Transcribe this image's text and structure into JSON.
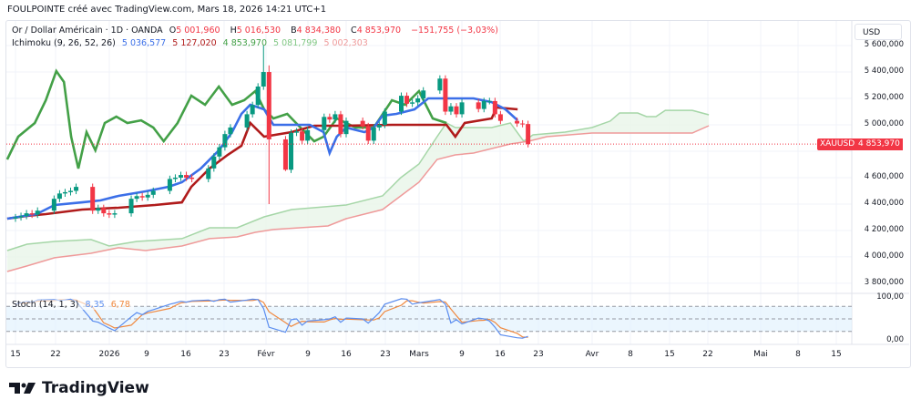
{
  "header": "FOULPOINTE créé avec TradingView.com, Mars 18, 2026 14:21 UTC+1",
  "legend": {
    "symbol": "Or / Dollar Américain · 1D · OANDA",
    "o_label": "O",
    "o": "5 001,960",
    "h_label": "H",
    "h": "5 016,530",
    "l_label": "B",
    "l": "4 834,380",
    "c_label": "C",
    "c": "4 853,970",
    "change": "−151,755 (−3,03%)",
    "ichimoku": "Ichimoku (9, 26, 52, 26)",
    "ichi_values": [
      "5 036,577",
      "5 127,020",
      "4 853,970",
      "5 081,799",
      "5 002,303"
    ],
    "stoch": "Stoch (14, 1, 3)",
    "stoch_k": "8,35",
    "stoch_d": "6,78"
  },
  "axis": {
    "currency": "USD",
    "price_ticks": [
      "5 600,000",
      "5 400,000",
      "5 200,000",
      "5 000,000",
      "4 600,000",
      "4 400,000",
      "4 200,000",
      "4 000,000",
      "3 800,000"
    ],
    "stoch_ticks": [
      "100,00",
      "0,00"
    ],
    "x_ticks": [
      "15",
      "22",
      "2026",
      "9",
      "16",
      "23",
      "Févr",
      "9",
      "16",
      "23",
      "Mars",
      "9",
      "16",
      "23",
      "Avr",
      "8",
      "15",
      "22",
      "Mai",
      "8",
      "15"
    ],
    "price_tag_symbol": "XAUUSD",
    "price_tag_value": "4 853,970"
  },
  "brand": "TradingView",
  "colors": {
    "up": "#089981",
    "down": "#f23645",
    "tenkan": "#3b6fe8",
    "kijun": "#b01b1b",
    "lagging": "#43a047",
    "spanA": "#a5d6a7",
    "spanB": "#ef9a9a",
    "cloud": "#e8f5e9",
    "stochK": "#5b8def",
    "stochD": "#f0883e"
  },
  "chart_data": {
    "type": "candlestick",
    "title": "Or / Dollar Américain · 1D · OANDA",
    "x_start": "2025-12-15",
    "x_unit": "days since start",
    "ylim": [
      3750000,
      5650000
    ],
    "closes_start_open": 4290,
    "closes": [
      4300,
      4310,
      4330,
      4320,
      4350,
      4440,
      4480,
      4490,
      4500,
      4530,
      4350,
      4370,
      4330,
      4320,
      4330,
      4440,
      4460,
      4450,
      4470,
      4500,
      4590,
      4600,
      4620,
      4600,
      4590,
      4670,
      4760,
      4830,
      4930,
      4980,
      5080,
      5150,
      5290,
      5400,
      4890,
      4660,
      4940,
      4950,
      4880,
      4960,
      5060,
      5040,
      5080,
      4930,
      5030,
      4990,
      4880,
      4980,
      5000,
      5100,
      5220,
      5160,
      5170,
      5200,
      5260,
      5350,
      5100,
      5140,
      5080,
      5170,
      5120,
      5180,
      5180,
      5080,
      5030,
      5010,
      5006,
      4854
    ],
    "price_scale_note": "closes in thousands (×1000 USD display units)",
    "tenkan": [
      [
        -1.5,
        4289
      ],
      [
        3.8,
        4324
      ],
      [
        7.1,
        4393
      ],
      [
        12.1,
        4413
      ],
      [
        15.4,
        4427
      ],
      [
        18.7,
        4462
      ],
      [
        23.6,
        4496
      ],
      [
        27.8,
        4531
      ],
      [
        30.2,
        4565
      ],
      [
        33.6,
        4669
      ],
      [
        36.9,
        4807
      ],
      [
        39.3,
        4945
      ],
      [
        41,
        5083
      ],
      [
        42.6,
        5152
      ],
      [
        45.1,
        5117
      ],
      [
        46.8,
        5000
      ],
      [
        50.1,
        5000
      ],
      [
        53.4,
        5000
      ],
      [
        55.9,
        4945
      ],
      [
        57,
        4786
      ],
      [
        58.3,
        4910
      ],
      [
        60,
        4979
      ],
      [
        63.3,
        4945
      ],
      [
        65,
        4979
      ],
      [
        66.6,
        5069
      ],
      [
        69.1,
        5083
      ],
      [
        72.4,
        5117
      ],
      [
        74.9,
        5200
      ],
      [
        79.8,
        5200
      ],
      [
        83.1,
        5200
      ],
      [
        86.4,
        5172
      ],
      [
        88.9,
        5117
      ],
      [
        91.1,
        5034
      ]
    ],
    "kijun": [
      [
        -1.5,
        4289
      ],
      [
        2.1,
        4310
      ],
      [
        5.5,
        4324
      ],
      [
        12.1,
        4358
      ],
      [
        18.7,
        4372
      ],
      [
        25.3,
        4393
      ],
      [
        30.2,
        4413
      ],
      [
        31.9,
        4531
      ],
      [
        35.2,
        4669
      ],
      [
        38.5,
        4772
      ],
      [
        41,
        4841
      ],
      [
        42.6,
        5014
      ],
      [
        45.1,
        4910
      ],
      [
        50.1,
        4945
      ],
      [
        54.2,
        4993
      ],
      [
        60,
        4993
      ],
      [
        68.3,
        5000
      ],
      [
        78.2,
        5000
      ],
      [
        79.8,
        4910
      ],
      [
        81.5,
        5014
      ],
      [
        86.4,
        5048
      ],
      [
        87.3,
        5131
      ],
      [
        91.1,
        5117
      ]
    ],
    "lagging": [
      [
        -1.5,
        4738
      ],
      [
        0.5,
        4910
      ],
      [
        3.5,
        5014
      ],
      [
        5.5,
        5186
      ],
      [
        7.4,
        5407
      ],
      [
        8.8,
        5324
      ],
      [
        10.1,
        4910
      ],
      [
        11.4,
        4669
      ],
      [
        12.9,
        4945
      ],
      [
        14.5,
        4807
      ],
      [
        16.2,
        5014
      ],
      [
        18.3,
        5062
      ],
      [
        20.3,
        5014
      ],
      [
        22.8,
        5034
      ],
      [
        25,
        4979
      ],
      [
        26.9,
        4876
      ],
      [
        29.4,
        5014
      ],
      [
        31.9,
        5221
      ],
      [
        34.4,
        5152
      ],
      [
        36.9,
        5290
      ],
      [
        39.3,
        5152
      ],
      [
        41.5,
        5186
      ],
      [
        43.5,
        5255
      ],
      [
        45.1,
        5117
      ],
      [
        46.8,
        5048
      ],
      [
        49.3,
        5083
      ],
      [
        51.7,
        4979
      ],
      [
        54.2,
        4876
      ],
      [
        55.9,
        4910
      ],
      [
        58.3,
        5048
      ],
      [
        61.7,
        4979
      ],
      [
        65,
        4979
      ],
      [
        68.3,
        5186
      ],
      [
        70.7,
        5152
      ],
      [
        73.2,
        5255
      ],
      [
        75.7,
        5048
      ],
      [
        78.2,
        5014
      ]
    ],
    "spanA": [
      [
        -1.5,
        4048
      ],
      [
        2.1,
        4096
      ],
      [
        7.1,
        4117
      ],
      [
        13.7,
        4131
      ],
      [
        17,
        4082
      ],
      [
        22,
        4117
      ],
      [
        30.2,
        4138
      ],
      [
        35.2,
        4220
      ],
      [
        40.2,
        4220
      ],
      [
        45.1,
        4303
      ],
      [
        50.1,
        4358
      ],
      [
        60,
        4393
      ],
      [
        66.6,
        4462
      ],
      [
        69.9,
        4600
      ],
      [
        73.2,
        4703
      ],
      [
        76.5,
        4910
      ],
      [
        78.2,
        5014
      ],
      [
        79.8,
        4979
      ],
      [
        86.4,
        4979
      ],
      [
        89.8,
        5014
      ],
      [
        92.2,
        4876
      ],
      [
        93.9,
        4924
      ],
      [
        99.7,
        4945
      ],
      [
        104.6,
        4979
      ],
      [
        107.9,
        5028
      ],
      [
        109.6,
        5090
      ],
      [
        112.9,
        5090
      ],
      [
        114.5,
        5062
      ],
      [
        116.2,
        5062
      ],
      [
        117.9,
        5110
      ],
      [
        122.8,
        5110
      ],
      [
        125.8,
        5076
      ]
    ],
    "spanB": [
      [
        -1.5,
        3889
      ],
      [
        2.1,
        3931
      ],
      [
        7.1,
        3993
      ],
      [
        13.7,
        4027
      ],
      [
        18.7,
        4069
      ],
      [
        23.6,
        4048
      ],
      [
        30.2,
        4082
      ],
      [
        35.2,
        4138
      ],
      [
        40.2,
        4151
      ],
      [
        43.5,
        4186
      ],
      [
        46.8,
        4207
      ],
      [
        56.7,
        4234
      ],
      [
        60,
        4289
      ],
      [
        66.6,
        4358
      ],
      [
        69.9,
        4462
      ],
      [
        73.2,
        4565
      ],
      [
        76.5,
        4738
      ],
      [
        79.8,
        4772
      ],
      [
        83.1,
        4786
      ],
      [
        89.8,
        4855
      ],
      [
        93.1,
        4876
      ],
      [
        96.4,
        4910
      ],
      [
        104.6,
        4938
      ],
      [
        112.9,
        4938
      ],
      [
        122.8,
        4938
      ],
      [
        125.8,
        4993
      ]
    ],
    "stoch_k": [
      85,
      88,
      92,
      90,
      95,
      96,
      94,
      95,
      97,
      92,
      45,
      42,
      35,
      28,
      22,
      55,
      65,
      60,
      68,
      72,
      85,
      88,
      92,
      90,
      93,
      95,
      92,
      96,
      97,
      90,
      95,
      97,
      96,
      75,
      30,
      18,
      48,
      50,
      35,
      45,
      48,
      50,
      55,
      42,
      52,
      50,
      40,
      52,
      65,
      85,
      98,
      97,
      85,
      88,
      90,
      96,
      85,
      40,
      48,
      38,
      52,
      50,
      45,
      30,
      12,
      5,
      4,
      8.35
    ],
    "stoch_levels": [
      80,
      50,
      20
    ]
  }
}
